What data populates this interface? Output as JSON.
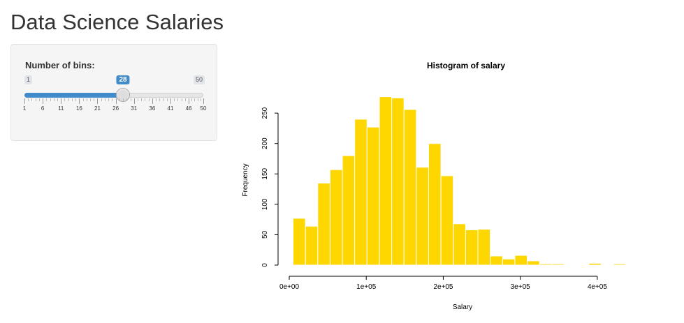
{
  "page": {
    "title": "Data Science Salaries"
  },
  "sidebar": {
    "slider": {
      "label": "Number of bins:",
      "min": 1,
      "max": 50,
      "value": 28,
      "min_label": "1",
      "max_label": "50",
      "value_label": "28",
      "tick_labels": [
        "1",
        "6",
        "11",
        "16",
        "21",
        "26",
        "31",
        "36",
        "41",
        "46",
        "50"
      ],
      "accent_color": "#428bca"
    }
  },
  "chart_data": {
    "type": "bar",
    "title": "Histogram of salary",
    "xlabel": "Salary",
    "ylabel": "Frequency",
    "bar_color": "#ffd700",
    "bin_width": 16000,
    "x_start": 5000,
    "values": [
      77,
      64,
      135,
      157,
      180,
      240,
      227,
      277,
      275,
      256,
      161,
      200,
      147,
      68,
      58,
      59,
      15,
      10,
      16,
      7,
      2,
      2,
      0,
      1,
      3,
      0,
      2,
      1
    ],
    "xlim": [
      0,
      450000
    ],
    "ylim": [
      0,
      280
    ],
    "x_ticks": [
      0,
      100000,
      200000,
      300000,
      400000
    ],
    "x_tick_labels": [
      "0e+00",
      "1e+05",
      "2e+05",
      "3e+05",
      "4e+05"
    ],
    "y_ticks": [
      0,
      50,
      100,
      150,
      200,
      250
    ],
    "y_tick_labels": [
      "0",
      "50",
      "100",
      "150",
      "200",
      "250"
    ]
  }
}
